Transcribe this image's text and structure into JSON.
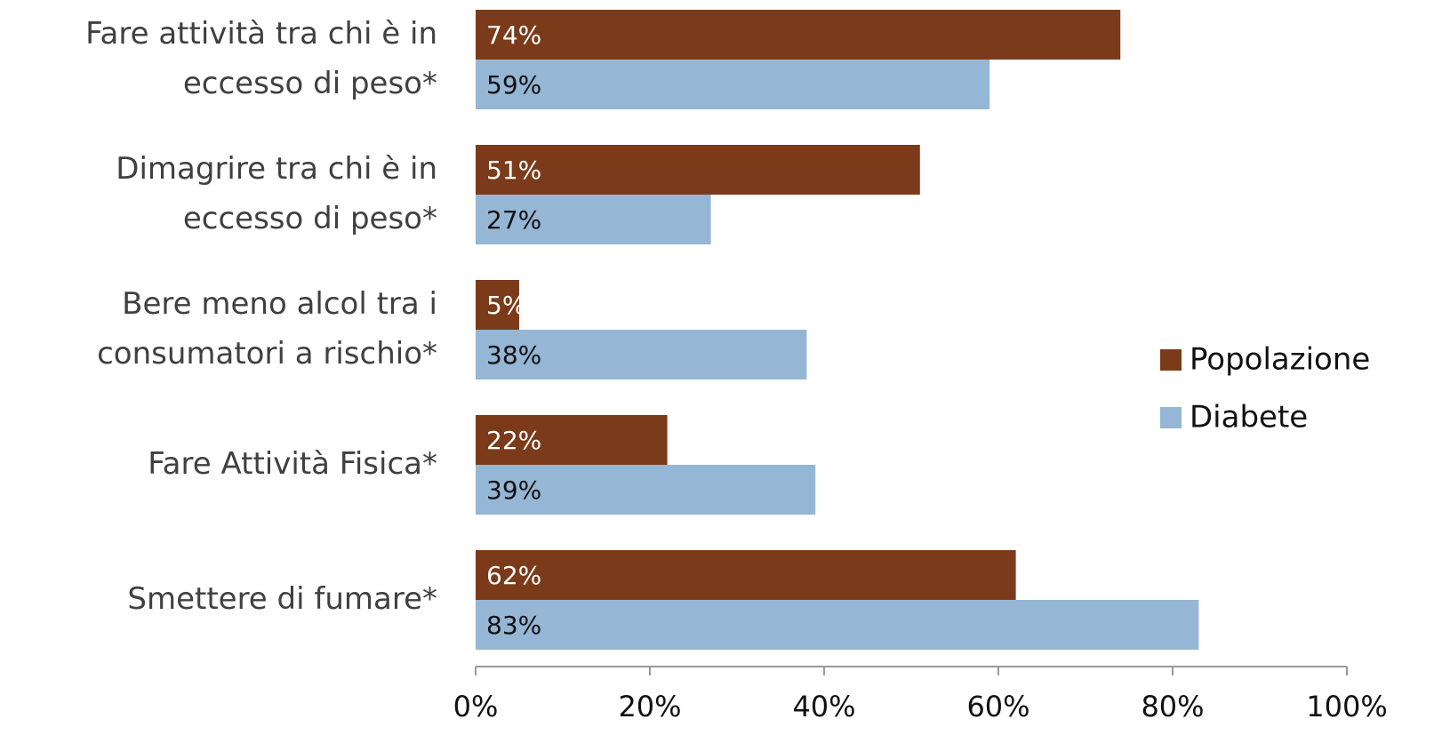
{
  "chart_data": {
    "type": "hbar",
    "categories": [
      "Fare attività tra chi è in eccesso di peso*",
      "Dimagrire tra chi è in eccesso di peso*",
      "Bere meno alcol tra i consumatori a rischio*",
      "Fare Attività Fisica*",
      "Smettere di fumare*"
    ],
    "series": [
      {
        "name": "Popolazione",
        "color": "#7b3b1a",
        "values": [
          74,
          51,
          5,
          22,
          62
        ],
        "value_labels": [
          "74%",
          "51%",
          "5%",
          "22%",
          "62%"
        ]
      },
      {
        "name": "Diabete",
        "color": "#95b6d4",
        "values": [
          59,
          27,
          38,
          39,
          83
        ],
        "value_labels": [
          "59%",
          "27%",
          "38%",
          "39%",
          "83%"
        ]
      }
    ],
    "xlim": [
      0,
      100
    ],
    "xticks": [
      {
        "value": 0,
        "label": "0%"
      },
      {
        "value": 20,
        "label": "20%"
      },
      {
        "value": 40,
        "label": "40%"
      },
      {
        "value": 60,
        "label": "60%"
      },
      {
        "value": 80,
        "label": "80%"
      },
      {
        "value": 100,
        "label": "100%"
      }
    ],
    "legend": "right"
  }
}
